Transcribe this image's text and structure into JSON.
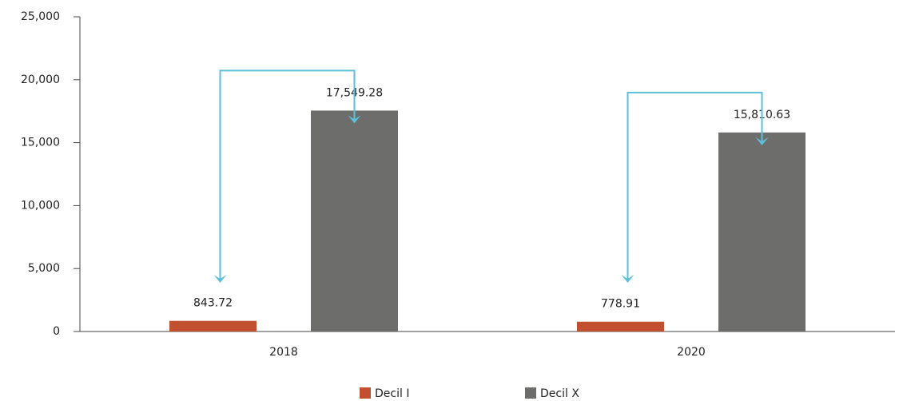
{
  "chart_data": {
    "type": "bar",
    "categories": [
      "2018",
      "2020"
    ],
    "series": [
      {
        "name": "Decil I",
        "color": "#c0502e",
        "values": [
          843.72,
          778.91
        ],
        "value_labels": [
          "843.72",
          "778.91"
        ]
      },
      {
        "name": "Decil X",
        "color": "#6d6e6c",
        "values": [
          17549.28,
          15810.63
        ],
        "value_labels": [
          "17,549.28",
          "15,810.63"
        ]
      }
    ],
    "ylim": [
      0,
      25000
    ],
    "yticks": [
      0,
      {
        "value": 5000,
        "label": "5,000"
      },
      {
        "value": 10000,
        "label": "10,000"
      },
      {
        "value": 15000,
        "label": "15,000"
      },
      {
        "value": 20000,
        "label": "20,000"
      },
      {
        "value": 25000,
        "label": "25,000"
      }
    ],
    "grid": false,
    "legend": "bottom"
  }
}
